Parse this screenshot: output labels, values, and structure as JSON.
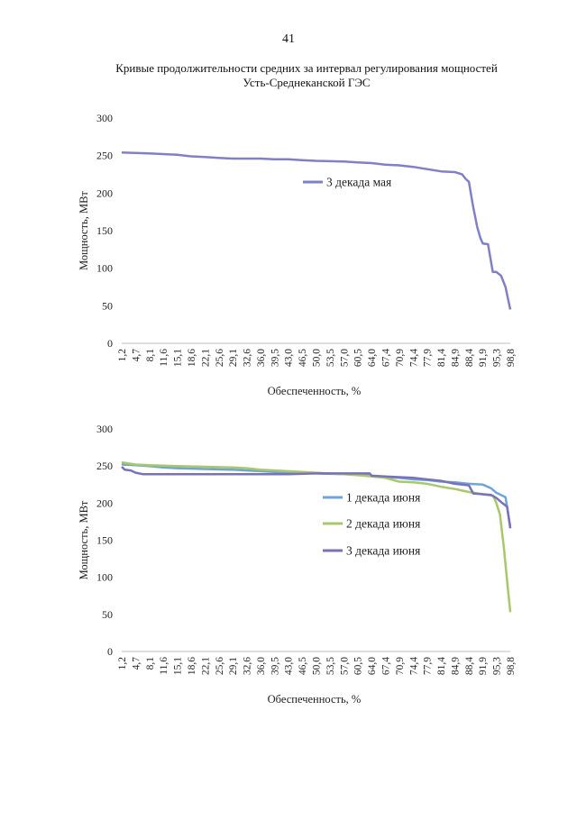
{
  "page": {
    "number": "41",
    "title_line1": "Кривые продолжительности средних за интервал регулирования мощностей",
    "title_line2": "Усть-Среднеканской ГЭС"
  },
  "colors": {
    "may3": "#8080c8",
    "june1": "#6fa4d8",
    "june2": "#a8c86a",
    "june3": "#7a72b8",
    "axis": "#bfbfbf"
  },
  "chart_data": [
    {
      "type": "line",
      "xlabel": "Обеспеченность, %",
      "ylabel": "Мощность, МВт",
      "ylim": [
        0,
        300
      ],
      "yticks": [
        "0",
        "50",
        "100",
        "150",
        "200",
        "250",
        "300"
      ],
      "grid": false,
      "legend": "upper-middle",
      "xtick_labels": [
        "1,2",
        "4,7",
        "8,1",
        "11,6",
        "15,1",
        "18,6",
        "22,1",
        "25,6",
        "29,1",
        "32,6",
        "36,0",
        "39,5",
        "43,0",
        "46,5",
        "50,0",
        "53,5",
        "57,0",
        "60,5",
        "64,0",
        "67,4",
        "70,9",
        "74,4",
        "77,9",
        "81,4",
        "84,9",
        "88,4",
        "91,9",
        "95,3",
        "98,8"
      ],
      "series": [
        {
          "name": "3 декада мая",
          "color": "#8080c8",
          "x": [
            1.2,
            8.1,
            11.6,
            15.1,
            18.6,
            22.1,
            25.6,
            29.1,
            36.0,
            39.5,
            43.0,
            46.5,
            50.0,
            57.0,
            60.5,
            64.0,
            67.4,
            70.9,
            74.4,
            77.9,
            81.4,
            84.9,
            86.7,
            87.6,
            88.4,
            89.4,
            90.5,
            91.3,
            91.9,
            93.2,
            94.4,
            95.3,
            96.5,
            97.6,
            98.8
          ],
          "y": [
            254,
            253,
            252,
            251,
            249,
            248,
            247,
            246,
            246,
            245,
            245,
            244,
            243,
            242,
            241,
            240,
            238,
            237,
            235,
            232,
            229,
            228,
            225,
            219,
            215,
            184,
            155,
            140,
            133,
            132,
            95,
            95,
            90,
            75,
            45
          ]
        }
      ]
    },
    {
      "type": "line",
      "xlabel": "Обеспеченность, %",
      "ylabel": "Мощность, МВт",
      "ylim": [
        0,
        300
      ],
      "yticks": [
        "0",
        "50",
        "100",
        "150",
        "200",
        "250",
        "300"
      ],
      "grid": false,
      "legend": "right",
      "xtick_labels": [
        "1,2",
        "4,7",
        "8,1",
        "11,6",
        "15,1",
        "18,6",
        "22,1",
        "25,6",
        "29,1",
        "32,6",
        "36,0",
        "39,5",
        "43,0",
        "46,5",
        "50,0",
        "53,5",
        "57,0",
        "60,5",
        "64,0",
        "67,4",
        "70,9",
        "74,4",
        "77,9",
        "81,4",
        "84,9",
        "88,4",
        "91,9",
        "95,3",
        "98,8"
      ],
      "series": [
        {
          "name": "1 декада июня",
          "color": "#6fa4d8",
          "x": [
            1.2,
            4.7,
            8.1,
            11.6,
            15.1,
            22.1,
            29.1,
            36.0,
            43.0,
            50.0,
            57.0,
            62.0,
            64.0,
            70.9,
            74.4,
            77.9,
            81.4,
            84.9,
            88.4,
            91.9,
            94.0,
            95.3,
            97.6,
            98.8
          ],
          "y": [
            252,
            251,
            250,
            248,
            247,
            246,
            245,
            243,
            241,
            240,
            239,
            239,
            236,
            234,
            232,
            231,
            229,
            228,
            226,
            225,
            220,
            214,
            208,
            168
          ]
        },
        {
          "name": "2 декада июня",
          "color": "#a8c86a",
          "x": [
            1.2,
            4.7,
            8.1,
            15.1,
            22.1,
            29.1,
            32.6,
            36.0,
            43.0,
            50.0,
            57.0,
            62.0,
            64.0,
            67.4,
            70.9,
            74.4,
            77.9,
            81.4,
            84.9,
            88.4,
            91.9,
            94.5,
            95.3,
            96.2,
            97.2,
            98.0,
            98.8
          ],
          "y": [
            255,
            252,
            251,
            250,
            249,
            248,
            247,
            245,
            243,
            241,
            239,
            237,
            236,
            234,
            229,
            228,
            226,
            222,
            219,
            215,
            212,
            210,
            200,
            185,
            140,
            95,
            53
          ]
        },
        {
          "name": "3 декада июня",
          "color": "#7a72b8",
          "x": [
            1.2,
            2.0,
            3.5,
            4.7,
            6.5,
            8.1,
            15.1,
            22.1,
            29.1,
            36.0,
            43.0,
            50.0,
            57.0,
            63.5,
            64.0,
            67.4,
            70.9,
            74.4,
            77.9,
            81.4,
            84.9,
            88.4,
            89.5,
            91.9,
            94.0,
            95.3,
            96.8,
            98.0,
            98.8
          ],
          "y": [
            249,
            245,
            244,
            241,
            239,
            239,
            239,
            239,
            239,
            239,
            239,
            240,
            240,
            240,
            237,
            236,
            235,
            234,
            232,
            230,
            226,
            224,
            213,
            212,
            211,
            207,
            200,
            195,
            166
          ]
        }
      ]
    }
  ]
}
